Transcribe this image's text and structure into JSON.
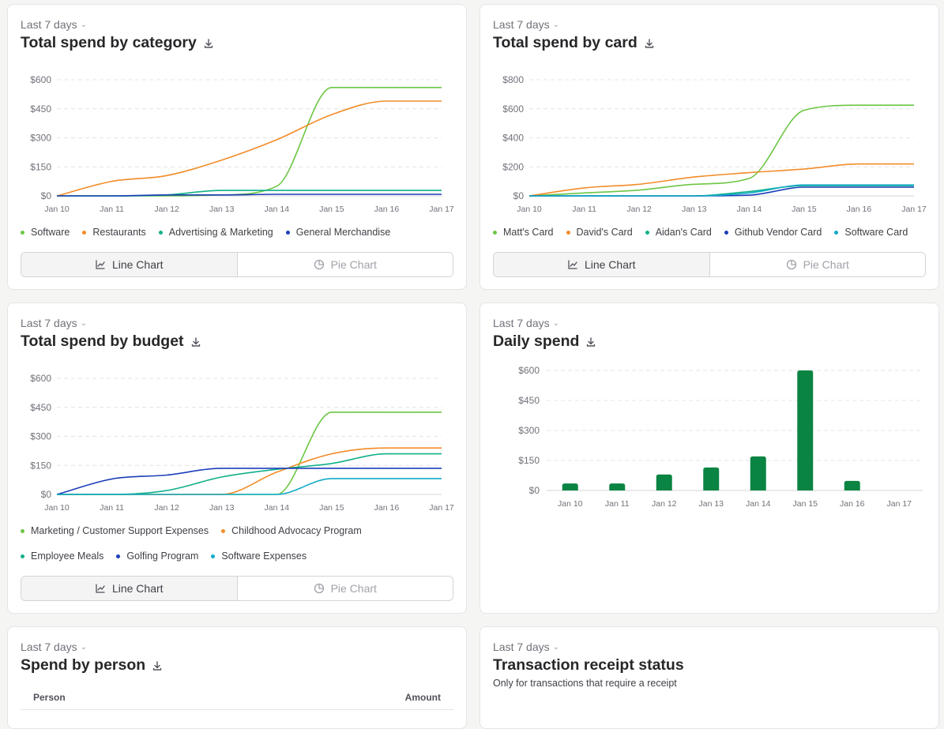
{
  "colors": {
    "green": "#6cc644",
    "orange": "#f28c28",
    "teal": "#10b088",
    "navy": "#1d3fb8",
    "cyan": "#11aac8",
    "bar": "#0a8442",
    "grid": "#e4e4e7"
  },
  "cards": {
    "category": {
      "period": "Last 7 days",
      "title": "Total spend by category",
      "toggle": {
        "line": "Line Chart",
        "pie": "Pie Chart"
      }
    },
    "card": {
      "period": "Last 7 days",
      "title": "Total spend by card",
      "toggle": {
        "line": "Line Chart",
        "pie": "Pie Chart"
      }
    },
    "budget": {
      "period": "Last 7 days",
      "title": "Total spend by budget",
      "toggle": {
        "line": "Line Chart",
        "pie": "Pie Chart"
      }
    },
    "daily": {
      "period": "Last 7 days",
      "title": "Daily spend"
    },
    "person": {
      "period": "Last 7 days",
      "title": "Spend by person",
      "columns": {
        "person": "Person",
        "amount": "Amount"
      }
    },
    "receipt": {
      "period": "Last 7 days",
      "title": "Transaction receipt status",
      "subtitle": "Only for transactions that require a receipt"
    }
  },
  "chart_data": [
    {
      "id": "category",
      "type": "line",
      "title": "Total spend by category",
      "x": [
        "Jan 10",
        "Jan 11",
        "Jan 12",
        "Jan 13",
        "Jan 14",
        "Jan 15",
        "Jan 16",
        "Jan 17"
      ],
      "y_ticks": [
        "$0",
        "$150",
        "$300",
        "$450",
        "$600"
      ],
      "ylim": [
        0,
        600
      ],
      "series": [
        {
          "name": "Software",
          "color": "#6cc644",
          "values": [
            0,
            0,
            0,
            5,
            50,
            560,
            560,
            560
          ]
        },
        {
          "name": "Restaurants",
          "color": "#f28c28",
          "values": [
            0,
            75,
            105,
            185,
            290,
            420,
            490,
            490
          ]
        },
        {
          "name": "Advertising & Marketing",
          "color": "#10b088",
          "values": [
            0,
            0,
            5,
            28,
            28,
            28,
            28,
            28
          ]
        },
        {
          "name": "General Merchandise",
          "color": "#1d3fb8",
          "values": [
            0,
            0,
            5,
            5,
            8,
            8,
            8,
            8
          ]
        }
      ]
    },
    {
      "id": "card",
      "type": "line",
      "title": "Total spend by card",
      "x": [
        "Jan 10",
        "Jan 11",
        "Jan 12",
        "Jan 13",
        "Jan 14",
        "Jan 15",
        "Jan 16",
        "Jan 17"
      ],
      "y_ticks": [
        "$0",
        "$200",
        "$400",
        "$600",
        "$800"
      ],
      "ylim": [
        0,
        800
      ],
      "series": [
        {
          "name": "Matt's Card",
          "color": "#6cc644",
          "values": [
            0,
            20,
            40,
            80,
            120,
            590,
            625,
            625
          ]
        },
        {
          "name": "David's Card",
          "color": "#f28c28",
          "values": [
            0,
            55,
            80,
            130,
            160,
            185,
            220,
            220
          ]
        },
        {
          "name": "Aidan's Card",
          "color": "#10b088",
          "values": [
            0,
            0,
            0,
            0,
            30,
            70,
            70,
            70
          ]
        },
        {
          "name": "Github Vendor Card",
          "color": "#1d3fb8",
          "values": [
            0,
            0,
            0,
            0,
            5,
            60,
            60,
            60
          ]
        },
        {
          "name": "Software Card",
          "color": "#11aac8",
          "values": [
            0,
            0,
            0,
            0,
            20,
            75,
            75,
            75
          ]
        }
      ]
    },
    {
      "id": "budget",
      "type": "line",
      "title": "Total spend by budget",
      "x": [
        "Jan 10",
        "Jan 11",
        "Jan 12",
        "Jan 13",
        "Jan 14",
        "Jan 15",
        "Jan 16",
        "Jan 17"
      ],
      "y_ticks": [
        "$0",
        "$150",
        "$300",
        "$450",
        "$600"
      ],
      "ylim": [
        0,
        600
      ],
      "series": [
        {
          "name": "Marketing / Customer Support Expenses",
          "color": "#6cc644",
          "values": [
            0,
            0,
            0,
            0,
            0,
            425,
            425,
            425
          ]
        },
        {
          "name": "Childhood Advocacy Program",
          "color": "#f28c28",
          "values": [
            0,
            0,
            0,
            0,
            115,
            210,
            240,
            240
          ]
        },
        {
          "name": "Employee Meals",
          "color": "#10b088",
          "values": [
            0,
            0,
            20,
            90,
            130,
            160,
            210,
            210
          ]
        },
        {
          "name": "Golfing Program",
          "color": "#1d3fb8",
          "values": [
            0,
            80,
            100,
            135,
            135,
            135,
            135,
            135
          ]
        },
        {
          "name": "Software Expenses",
          "color": "#11aac8",
          "values": [
            0,
            0,
            0,
            0,
            0,
            82,
            82,
            82
          ]
        }
      ]
    },
    {
      "id": "daily",
      "type": "bar",
      "title": "Daily spend",
      "categories": [
        "Jan 10",
        "Jan 11",
        "Jan 12",
        "Jan 13",
        "Jan 14",
        "Jan 15",
        "Jan 16",
        "Jan 17"
      ],
      "values": [
        35,
        35,
        80,
        115,
        170,
        600,
        48,
        0
      ],
      "y_ticks": [
        "$0",
        "$150",
        "$300",
        "$450",
        "$600"
      ],
      "ylim": [
        0,
        600
      ],
      "color": "#0a8442"
    }
  ]
}
